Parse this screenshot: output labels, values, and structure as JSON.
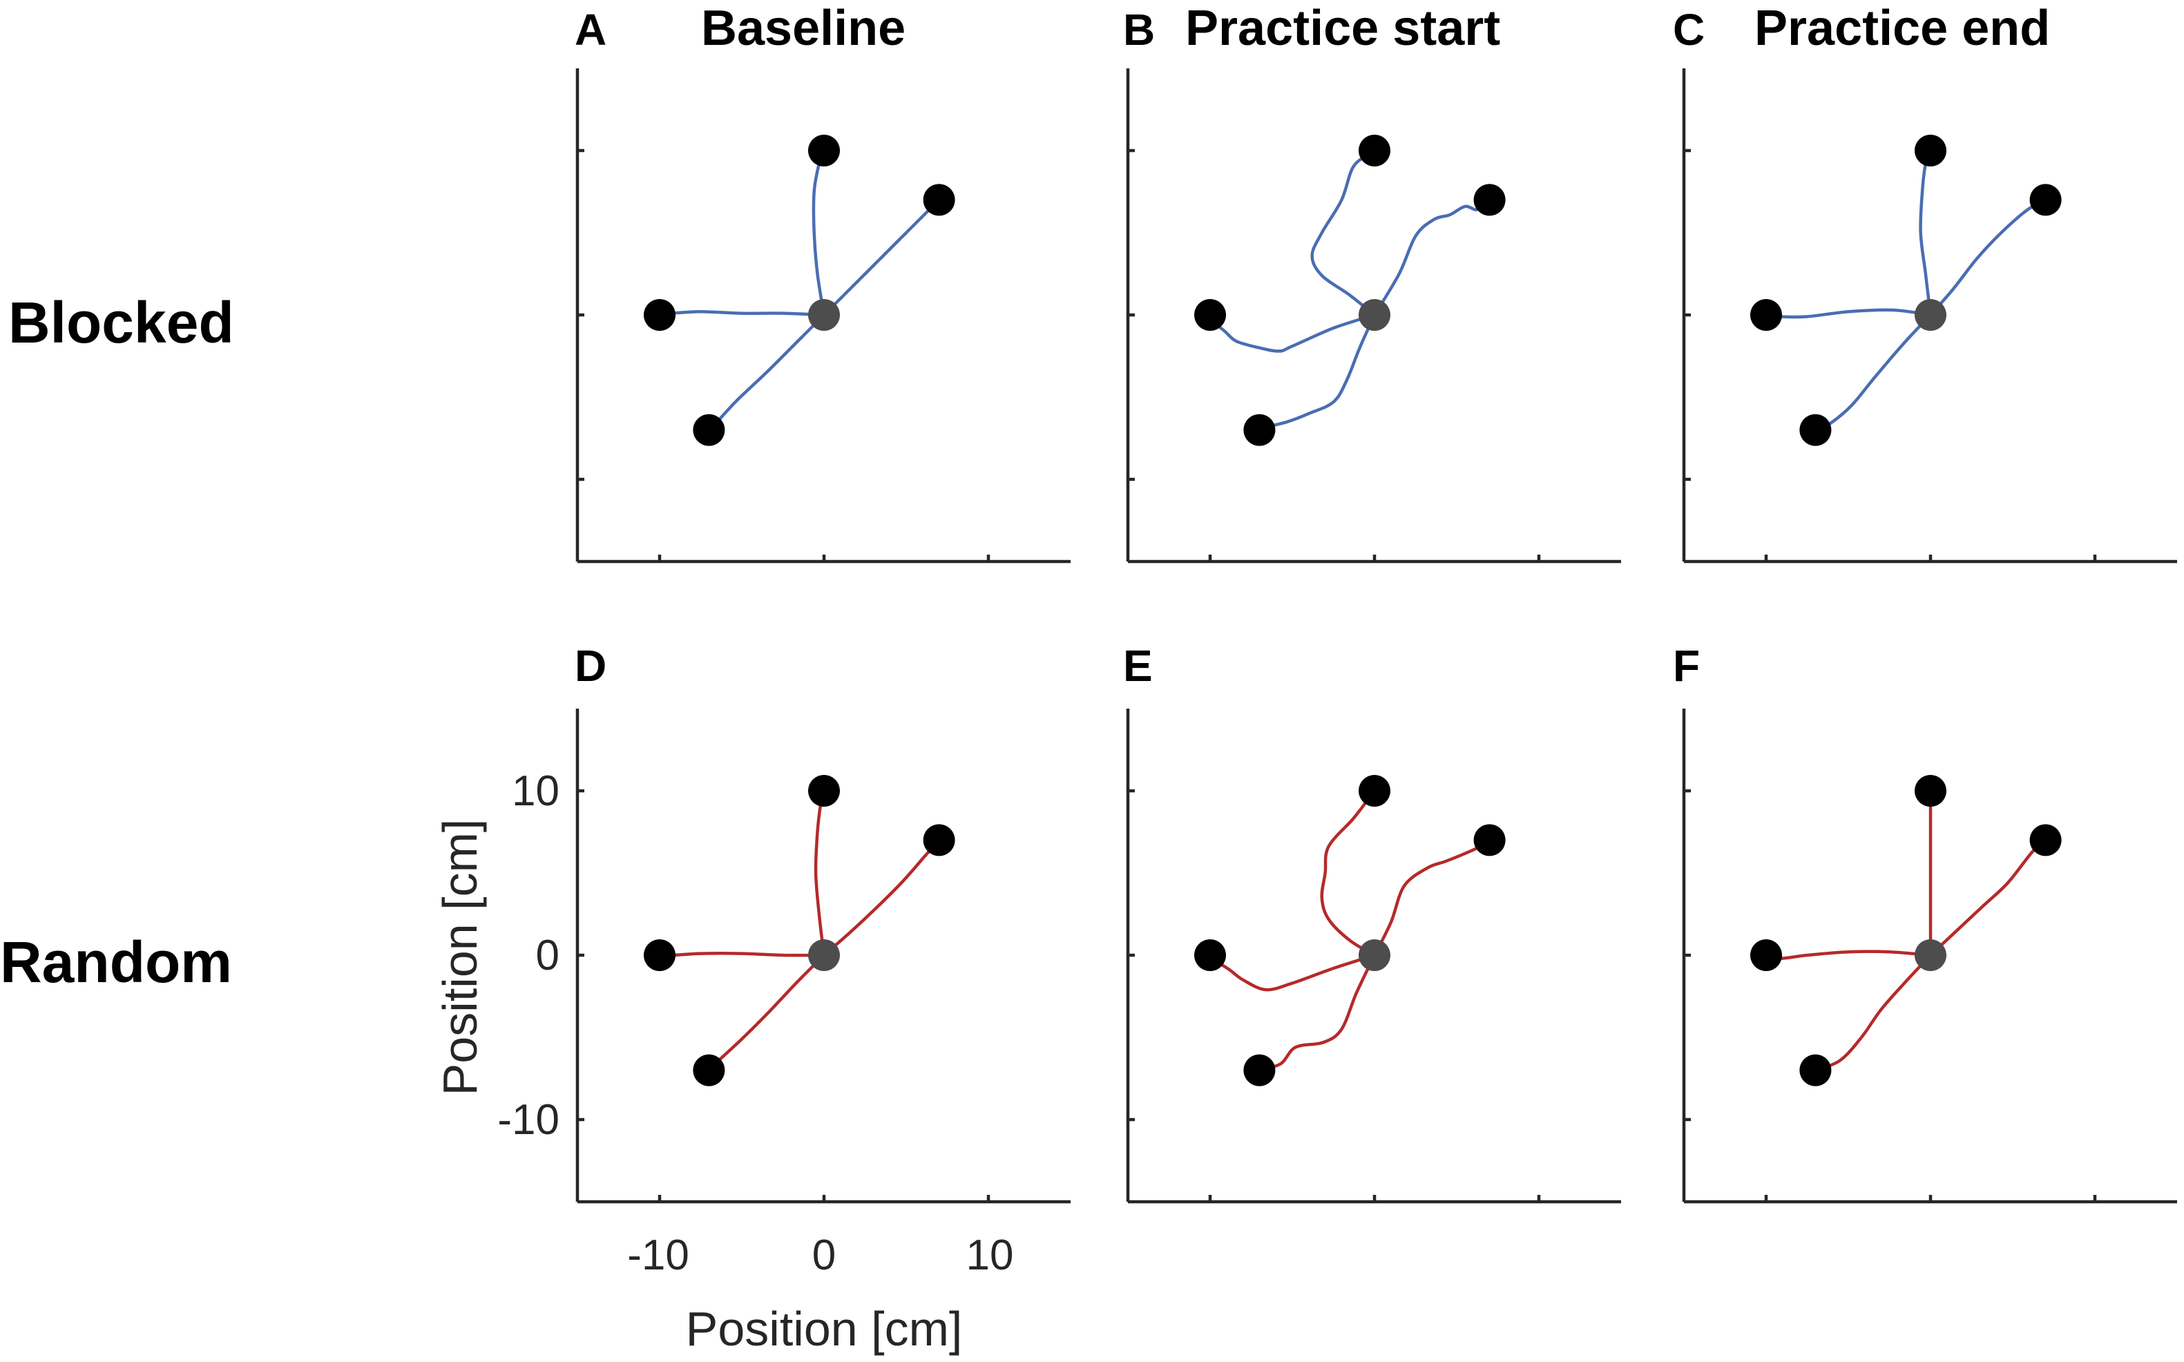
{
  "rows": [
    {
      "label": "Blocked",
      "color": "#4a6db3"
    },
    {
      "label": "Random",
      "color": "#b52a2a"
    }
  ],
  "chart_data": {
    "type": "scatter",
    "description_units": "cm",
    "xlim": [
      -15,
      15
    ],
    "ylim": [
      -15,
      15
    ],
    "xticks": [
      -10,
      0,
      10
    ],
    "yticks": [
      -10,
      0,
      10
    ],
    "xtick_labels": [
      "-10",
      "0",
      "10"
    ],
    "ytick_labels": [
      "-10",
      "0",
      "10"
    ],
    "xlabel": "Position [cm]",
    "ylabel": "Position [cm]",
    "start": {
      "x": 0,
      "y": 0,
      "color": "#4d4d4d"
    },
    "targets": [
      {
        "x": 0,
        "y": 10
      },
      {
        "x": 7,
        "y": 7
      },
      {
        "x": -10,
        "y": 0
      },
      {
        "x": -7,
        "y": -7
      }
    ],
    "target_color": "#000000",
    "panels": [
      {
        "letter": "A",
        "title": "Baseline",
        "row": 0,
        "col": 0,
        "trajectories": [
          [
            [
              0,
              0
            ],
            [
              -0.4,
              2.5
            ],
            [
              -0.6,
              5
            ],
            [
              -0.6,
              7.5
            ],
            [
              -0.3,
              9.2
            ],
            [
              0,
              10
            ]
          ],
          [
            [
              0,
              0
            ],
            [
              1.5,
              1.5
            ],
            [
              3,
              3
            ],
            [
              4.5,
              4.5
            ],
            [
              6,
              6
            ],
            [
              7,
              7
            ]
          ],
          [
            [
              0,
              0
            ],
            [
              -2.5,
              0.1
            ],
            [
              -5,
              0.1
            ],
            [
              -7.5,
              0.2
            ],
            [
              -9.2,
              0.1
            ],
            [
              -10,
              0
            ]
          ],
          [
            [
              0,
              0
            ],
            [
              -1.7,
              -1.7
            ],
            [
              -3.5,
              -3.5
            ],
            [
              -5.3,
              -5.2
            ],
            [
              -6.5,
              -6.5
            ],
            [
              -7,
              -7
            ]
          ]
        ]
      },
      {
        "letter": "B",
        "title": "Practice start",
        "row": 0,
        "col": 1,
        "trajectories": [
          [
            [
              0,
              0
            ],
            [
              -1.5,
              1.2
            ],
            [
              -3.2,
              2.4
            ],
            [
              -3.8,
              3.6
            ],
            [
              -3.2,
              5
            ],
            [
              -2,
              7
            ],
            [
              -1.3,
              9
            ],
            [
              -0.3,
              9.8
            ],
            [
              0,
              10
            ]
          ],
          [
            [
              0,
              0
            ],
            [
              1.5,
              2.5
            ],
            [
              2.5,
              4.8
            ],
            [
              3.6,
              5.8
            ],
            [
              4.6,
              6.1
            ],
            [
              5.5,
              6.6
            ],
            [
              6.2,
              6.4
            ],
            [
              6.6,
              6.8
            ],
            [
              7,
              7
            ]
          ],
          [
            [
              0,
              0
            ],
            [
              -2.5,
              -0.8
            ],
            [
              -5,
              -1.9
            ],
            [
              -5.8,
              -2.2
            ],
            [
              -7,
              -2
            ],
            [
              -8.4,
              -1.6
            ],
            [
              -9.1,
              -1
            ],
            [
              -9.7,
              -0.5
            ],
            [
              -10,
              0
            ]
          ],
          [
            [
              0,
              0
            ],
            [
              -0.9,
              -2
            ],
            [
              -1.7,
              -4
            ],
            [
              -2.5,
              -5.3
            ],
            [
              -4,
              -6
            ],
            [
              -5.3,
              -6.5
            ],
            [
              -6.5,
              -6.8
            ],
            [
              -7,
              -7
            ]
          ]
        ]
      },
      {
        "letter": "C",
        "title": "Practice end",
        "row": 0,
        "col": 2,
        "trajectories": [
          [
            [
              0,
              0
            ],
            [
              -0.3,
              2.5
            ],
            [
              -0.6,
              5
            ],
            [
              -0.5,
              7.5
            ],
            [
              -0.3,
              9.2
            ],
            [
              0,
              10
            ]
          ],
          [
            [
              0,
              0
            ],
            [
              1.4,
              1.6
            ],
            [
              2.8,
              3.4
            ],
            [
              4.3,
              5
            ],
            [
              5.9,
              6.4
            ],
            [
              7,
              7
            ]
          ],
          [
            [
              0,
              0
            ],
            [
              -2.3,
              0.3
            ],
            [
              -5,
              0.2
            ],
            [
              -7.5,
              -0.1
            ],
            [
              -9.2,
              -0.1
            ],
            [
              -10,
              0
            ]
          ],
          [
            [
              0,
              0
            ],
            [
              -1.6,
              -1.7
            ],
            [
              -3.4,
              -3.8
            ],
            [
              -4.8,
              -5.5
            ],
            [
              -6.1,
              -6.6
            ],
            [
              -7,
              -7
            ]
          ]
        ]
      },
      {
        "letter": "D",
        "title": "",
        "row": 1,
        "col": 0,
        "trajectories": [
          [
            [
              0,
              0
            ],
            [
              -0.3,
              2.5
            ],
            [
              -0.5,
              5
            ],
            [
              -0.4,
              7.5
            ],
            [
              -0.2,
              9.2
            ],
            [
              0,
              10
            ]
          ],
          [
            [
              0,
              0
            ],
            [
              1.6,
              1.4
            ],
            [
              3.2,
              2.9
            ],
            [
              4.8,
              4.5
            ],
            [
              6.2,
              6.1
            ],
            [
              7,
              7
            ]
          ],
          [
            [
              0,
              0
            ],
            [
              -2.5,
              0
            ],
            [
              -5,
              0.1
            ],
            [
              -7.5,
              0.1
            ],
            [
              -9.2,
              0
            ],
            [
              -10,
              0
            ]
          ],
          [
            [
              0,
              0
            ],
            [
              -1.6,
              -1.6
            ],
            [
              -3.3,
              -3.4
            ],
            [
              -5,
              -5.1
            ],
            [
              -6.4,
              -6.4
            ],
            [
              -7,
              -7
            ]
          ]
        ]
      },
      {
        "letter": "E",
        "title": "",
        "row": 1,
        "col": 1,
        "trajectories": [
          [
            [
              0,
              0
            ],
            [
              -1.5,
              0.9
            ],
            [
              -2.8,
              2.2
            ],
            [
              -3.2,
              3.5
            ],
            [
              -3,
              5
            ],
            [
              -2.8,
              6.6
            ],
            [
              -1.3,
              8.3
            ],
            [
              -0.3,
              9.6
            ],
            [
              0,
              10
            ]
          ],
          [
            [
              0,
              0
            ],
            [
              1,
              2
            ],
            [
              1.8,
              4.2
            ],
            [
              3.2,
              5.3
            ],
            [
              4.3,
              5.7
            ],
            [
              5.3,
              6.1
            ],
            [
              6.2,
              6.5
            ],
            [
              7,
              7
            ]
          ],
          [
            [
              0,
              0
            ],
            [
              -2.5,
              -0.8
            ],
            [
              -5,
              -1.7
            ],
            [
              -6.6,
              -2.1
            ],
            [
              -8,
              -1.5
            ],
            [
              -8.8,
              -0.9
            ],
            [
              -9.4,
              -0.5
            ],
            [
              -10,
              0
            ]
          ],
          [
            [
              0,
              0
            ],
            [
              -1.1,
              -2.3
            ],
            [
              -2,
              -4.5
            ],
            [
              -3.1,
              -5.3
            ],
            [
              -4.8,
              -5.6
            ],
            [
              -5.7,
              -6.6
            ],
            [
              -7,
              -7
            ]
          ]
        ]
      },
      {
        "letter": "F",
        "title": "",
        "row": 1,
        "col": 2,
        "trajectories": [
          [
            [
              0,
              0
            ],
            [
              0,
              2.5
            ],
            [
              0,
              5
            ],
            [
              0,
              7.5
            ],
            [
              0,
              9.2
            ],
            [
              0,
              10
            ]
          ],
          [
            [
              0,
              0
            ],
            [
              1.6,
              1.5
            ],
            [
              3.2,
              3
            ],
            [
              4.7,
              4.4
            ],
            [
              6.2,
              6.3
            ],
            [
              7,
              7
            ]
          ],
          [
            [
              0,
              0
            ],
            [
              -2.5,
              0.2
            ],
            [
              -5,
              0.2
            ],
            [
              -7.5,
              0
            ],
            [
              -9.2,
              -0.2
            ],
            [
              -10,
              0
            ]
          ],
          [
            [
              0,
              0
            ],
            [
              -1.5,
              -1.6
            ],
            [
              -3,
              -3.3
            ],
            [
              -4.2,
              -5
            ],
            [
              -5.5,
              -6.4
            ],
            [
              -7,
              -7
            ]
          ]
        ]
      }
    ]
  }
}
